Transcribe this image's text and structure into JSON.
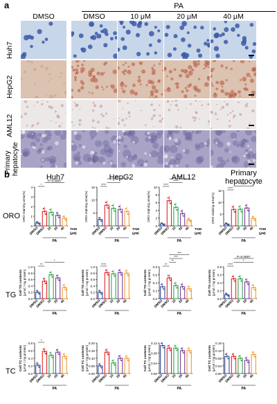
{
  "panel_a": {
    "label": "a",
    "top_group": "PA",
    "columns": [
      "DMSO",
      "DMSO",
      "10 μM",
      "20 μM",
      "40 μM"
    ],
    "rows": [
      "Huh7",
      "HepG2",
      "AML12",
      "Primary\nhepatocyte"
    ],
    "row_labels": [
      "Huh7",
      "HepG2",
      "AML12",
      "Primary",
      "hepatocyte"
    ],
    "row_colors": [
      "#c8d6ea",
      "#dcc2b0",
      "#ece8e8",
      "#a9a4c6"
    ]
  },
  "panel_b": {
    "label": "b",
    "col_titles": [
      "Huh7",
      "HepG2",
      "AML12",
      "Primary",
      "hepatocyte"
    ],
    "row_titles": [
      "ORO",
      "TG",
      "TC"
    ],
    "x_ticks": [
      "DMSO",
      "DMSO",
      "10",
      "20",
      "40"
    ],
    "pa_label": "PA",
    "tam_label": "TAM",
    "tam_unit": "(μM)",
    "ylabels": {
      "oro": "ORO staining area(%)",
      "tg1": "Cell TG contents",
      "tg2": "(μmol / mg protein)",
      "tc1": "Cell TC contents",
      "tc2": "(μmol / mg protein)"
    }
  },
  "colors": {
    "dmso": "#3a4f9e",
    "pa": "#e0242a",
    "c10": "#2fa64a",
    "c20": "#7b3f98",
    "c40": "#f29a2e"
  },
  "chart_data": [
    {
      "type": "bar",
      "id": "oro-huh7",
      "categories": [
        "DMSO",
        "DMSO",
        "10",
        "20",
        "40"
      ],
      "values": [
        0.3,
        1.5,
        1.4,
        1.1,
        0.8
      ],
      "ylim": [
        0,
        4
      ],
      "yticks": [
        "0",
        "1",
        "2",
        "3",
        "4"
      ],
      "sig": [
        {
          "text": "*",
          "from": 0,
          "to": 1,
          "level": 1
        },
        {
          "text": "P=0.0987",
          "from": 1,
          "to": 4,
          "level": 2
        }
      ]
    },
    {
      "type": "bar",
      "id": "oro-hepg2",
      "categories": [
        "DMSO",
        "DMSO",
        "10",
        "20",
        "40"
      ],
      "values": [
        2.5,
        8.0,
        6.8,
        6.4,
        5.6
      ],
      "ylim": [
        0,
        15
      ],
      "yticks": [
        "0",
        "5",
        "10",
        "15"
      ],
      "sig": [
        {
          "text": "****",
          "from": 0,
          "to": 1,
          "level": 1
        },
        {
          "text": "*",
          "from": 1,
          "to": 3,
          "level": 2
        },
        {
          "text": "***",
          "from": 1,
          "to": 4,
          "level": 3
        }
      ]
    },
    {
      "type": "bar",
      "id": "oro-aml12",
      "categories": [
        "DMSO",
        "DMSO",
        "10",
        "20",
        "40"
      ],
      "values": [
        0.5,
        6.5,
        4.8,
        3.2,
        1.5
      ],
      "ylim": [
        0,
        10
      ],
      "yticks": [
        "0",
        "2",
        "4",
        "6",
        "8",
        "10"
      ],
      "sig": [
        {
          "text": "****",
          "from": 0,
          "to": 1,
          "level": 1
        },
        {
          "text": "****",
          "from": 1,
          "to": 3,
          "level": 2
        },
        {
          "text": "****",
          "from": 1,
          "to": 4,
          "level": 3
        }
      ]
    },
    {
      "type": "bar",
      "id": "oro-primary",
      "categories": [
        "DMSO",
        "DMSO",
        "10",
        "20",
        "40"
      ],
      "values": [
        0.8,
        7.0,
        7.1,
        7.6,
        3.2
      ],
      "ylim": [
        0,
        15
      ],
      "yticks": [
        "0",
        "5",
        "10",
        "15"
      ],
      "sig": [
        {
          "text": "****",
          "from": 0,
          "to": 1,
          "level": 1
        },
        {
          "text": "****",
          "from": 1,
          "to": 4,
          "level": 2
        }
      ]
    },
    {
      "type": "bar",
      "id": "tg-huh7",
      "categories": [
        "DMSO",
        "DMSO",
        "10",
        "20",
        "40"
      ],
      "values": [
        0.2,
        0.55,
        0.75,
        0.65,
        0.35
      ],
      "ylim": [
        0,
        1.0
      ],
      "yticks": [
        "0.0",
        "0.2",
        "0.4",
        "0.6",
        "0.8",
        "1.0"
      ],
      "sig": [
        {
          "text": "**",
          "from": 0,
          "to": 1,
          "level": 1
        },
        {
          "text": "*",
          "from": 1,
          "to": 4,
          "level": 2
        }
      ]
    },
    {
      "type": "bar",
      "id": "tg-hepg2",
      "categories": [
        "DMSO",
        "DMSO",
        "10",
        "20",
        "40"
      ],
      "values": [
        0.2,
        0.82,
        0.78,
        0.82,
        0.8
      ],
      "ylim": [
        0,
        1.0
      ],
      "yticks": [
        "0.0",
        "0.2",
        "0.4",
        "0.6",
        "0.8",
        "1.0"
      ],
      "sig": [
        {
          "text": "****",
          "from": 0,
          "to": 1,
          "level": 1
        }
      ]
    },
    {
      "type": "bar",
      "id": "tg-aml12",
      "categories": [
        "DMSO",
        "DMSO",
        "10",
        "20",
        "40"
      ],
      "values": [
        0.3,
        0.52,
        0.33,
        0.3,
        0.25
      ],
      "ylim": [
        0,
        0.8
      ],
      "yticks": [
        "0.0",
        "0.2",
        "0.4",
        "0.6",
        "0.8"
      ],
      "sig": [
        {
          "text": "**",
          "from": 0,
          "to": 1,
          "level": 1
        },
        {
          "text": "**",
          "from": 1,
          "to": 2,
          "level": 2
        },
        {
          "text": "***",
          "from": 1,
          "to": 3,
          "level": 3
        },
        {
          "text": "***",
          "from": 1,
          "to": 4,
          "level": 4
        }
      ]
    },
    {
      "type": "bar",
      "id": "tg-primary",
      "categories": [
        "DMSO",
        "DMSO",
        "10",
        "20",
        "40"
      ],
      "values": [
        0.1,
        0.5,
        0.5,
        0.42,
        0.28
      ],
      "ylim": [
        0,
        0.8
      ],
      "yticks": [
        "0.0",
        "0.2",
        "0.4",
        "0.6",
        "0.8"
      ],
      "sig": [
        {
          "text": "****",
          "from": 0,
          "to": 1,
          "level": 1
        },
        {
          "text": "*",
          "from": 1,
          "to": 4,
          "level": 2
        },
        {
          "text": "P=0.0657",
          "from": 1,
          "to": 4,
          "level": 3
        }
      ]
    },
    {
      "type": "bar",
      "id": "tc-huh7",
      "categories": [
        "DMSO",
        "DMSO",
        "10",
        "20",
        "40"
      ],
      "values": [
        0.22,
        0.58,
        0.48,
        0.56,
        0.45
      ],
      "ylim": [
        0,
        0.8
      ],
      "yticks": [
        "0.0",
        "0.2",
        "0.4",
        "0.6",
        "0.8"
      ],
      "sig": [
        {
          "text": "*",
          "from": 0,
          "to": 1,
          "level": 1
        }
      ]
    },
    {
      "type": "bar",
      "id": "tc-hepg2",
      "categories": [
        "DMSO",
        "DMSO",
        "10",
        "20",
        "40"
      ],
      "values": [
        0.05,
        0.14,
        0.07,
        0.1,
        0.1
      ],
      "ylim": [
        0,
        0.2
      ],
      "yticks": [
        "0.00",
        "0.05",
        "0.10",
        "0.15",
        "0.20"
      ],
      "sig": []
    },
    {
      "type": "bar",
      "id": "tc-aml12",
      "categories": [
        "DMSO",
        "DMSO",
        "10",
        "20",
        "40"
      ],
      "values": [
        0.11,
        0.1,
        0.1,
        0.09,
        0.09
      ],
      "ylim": [
        0,
        0.12
      ],
      "yticks": [
        "0.00",
        "0.04",
        "0.08",
        "0.12"
      ],
      "sig": []
    },
    {
      "type": "bar",
      "id": "tc-primary",
      "categories": [
        "DMSO",
        "DMSO",
        "10",
        "20",
        "40"
      ],
      "values": [
        0.09,
        0.09,
        0.08,
        0.07,
        0.1
      ],
      "ylim": [
        0,
        0.16
      ],
      "yticks": [
        "0.00",
        "0.04",
        "0.08",
        "0.12",
        "0.16"
      ],
      "sig": []
    }
  ]
}
